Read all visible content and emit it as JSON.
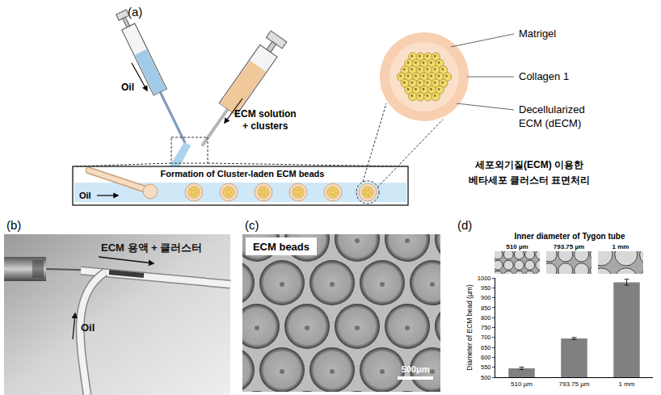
{
  "panels": {
    "a": {
      "label": "(a)",
      "oil": "Oil",
      "ecm": [
        "ECM solution",
        "+ clusters"
      ],
      "inset_title": "Formation of Cluster-laden ECM beads",
      "inset_oil": "Oil",
      "layers": [
        [
          "Matrigel"
        ],
        [
          "Collagen 1"
        ],
        [
          "Decellularized",
          "ECM (dECM)"
        ]
      ],
      "caption": [
        "세포외기질(ECM) 이용한",
        "베타세포 클러스터 표면처리"
      ]
    },
    "b": {
      "label": "(b)",
      "ecm": "ECM 용액 + 클러스터",
      "oil": "Oil"
    },
    "c": {
      "label": "(c)",
      "title": "ECM beads",
      "scale_bar": "500μm"
    },
    "d": {
      "label": "(d)"
    }
  },
  "chart_data": {
    "type": "bar",
    "title": "Inner diameter of Tygon tube",
    "categories": [
      "510 µm",
      "793.75 µm",
      "1 mm"
    ],
    "values": [
      545,
      695,
      978
    ],
    "errors": [
      6,
      5,
      15
    ],
    "color": "#808080",
    "ylabel": "Diameter of ECM bead (µm)",
    "ylim": [
      500,
      1000
    ],
    "yticks": [
      500,
      550,
      600,
      650,
      700,
      750,
      800,
      850,
      900,
      950,
      1000
    ]
  }
}
